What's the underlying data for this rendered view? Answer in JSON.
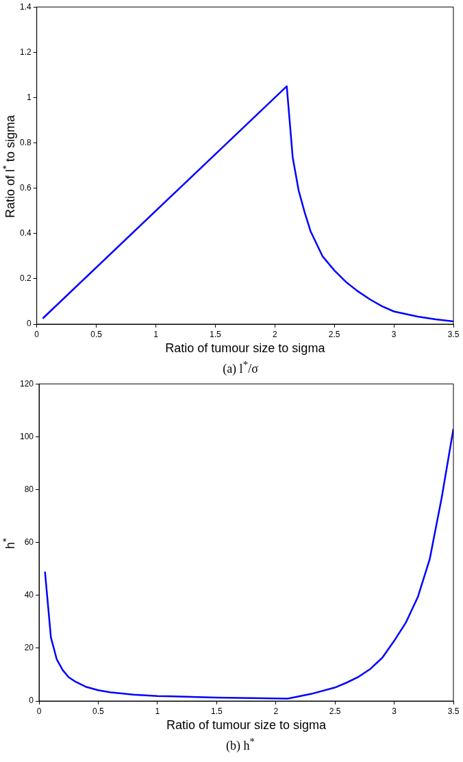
{
  "chart_data": [
    {
      "type": "line",
      "title": "(a) l$^{*}$/σ",
      "xlabel": "Ratio of tumour size to sigma",
      "ylabel": "Ratio of l$^{*}$ to sigma",
      "x": [
        0.05,
        2.1,
        2.15,
        2.2,
        2.25,
        2.3,
        2.4,
        2.5,
        2.6,
        2.7,
        2.8,
        2.9,
        3.0,
        3.2,
        3.35,
        3.5
      ],
      "series": [
        {
          "color": "#0000ff",
          "values": [
            0.025,
            1.05,
            0.736,
            0.59,
            0.494,
            0.41,
            0.3,
            0.237,
            0.185,
            0.144,
            0.109,
            0.079,
            0.056,
            0.033,
            0.021,
            0.012
          ]
        }
      ],
      "xlim": [
        0,
        3.5
      ],
      "xticks": [
        0,
        0.5,
        1,
        1.5,
        2,
        2.5,
        3,
        3.5
      ],
      "ylim": [
        0,
        1.4
      ],
      "yticks": [
        0,
        0.2,
        0.4,
        0.6,
        0.8,
        1,
        1.2,
        1.4
      ]
    },
    {
      "type": "line",
      "title": "(b) h$^{*}$",
      "xlabel": "Ratio of tumour size to sigma",
      "ylabel": "h$^{*}$",
      "x": [
        0.05,
        0.1,
        0.15,
        0.2,
        0.25,
        0.3,
        0.4,
        0.5,
        0.6,
        0.8,
        1.0,
        1.5,
        2.0,
        2.1,
        2.3,
        2.5,
        2.6,
        2.7,
        2.8,
        2.9,
        3.0,
        3.1,
        3.2,
        3.3,
        3.4,
        3.5
      ],
      "series": [
        {
          "color": "#0000ff",
          "values": [
            49,
            24.1,
            15.7,
            11.7,
            9.0,
            7.5,
            5.3,
            4.1,
            3.3,
            2.4,
            1.9,
            1.3,
            1.0,
            0.9,
            2.7,
            5.1,
            7.0,
            9.2,
            12.2,
            16.4,
            22.8,
            29.8,
            39.4,
            53.7,
            76.7,
            103
          ]
        }
      ],
      "xlim": [
        0,
        3.5
      ],
      "xticks": [
        0,
        0.5,
        1,
        1.5,
        2,
        2.5,
        3,
        3.5
      ],
      "ylim": [
        0,
        120
      ],
      "yticks": [
        0,
        20,
        40,
        60,
        80,
        100,
        120
      ]
    }
  ]
}
